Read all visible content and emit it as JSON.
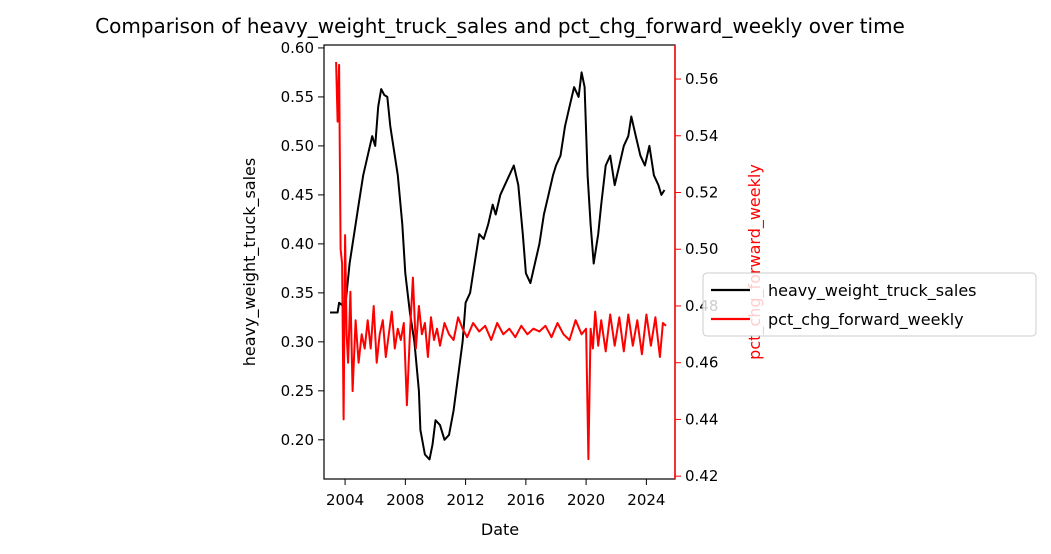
{
  "chart_data": {
    "type": "line",
    "title": "Comparison of heavy_weight_truck_sales and pct_chg_forward_weekly over time",
    "xlabel": "Date",
    "ylabel_left": "heavy_weight_truck_sales",
    "ylabel_right": "pct_chg_forward_weekly",
    "x_ticks": [
      "2004",
      "2008",
      "2012",
      "2016",
      "2020",
      "2024"
    ],
    "x_tick_values": [
      2004,
      2008,
      2012,
      2016,
      2020,
      2024
    ],
    "xlim": [
      2002.6,
      2025.9
    ],
    "ylim_left": [
      0.16,
      0.603
    ],
    "ylim_right": [
      0.419,
      0.572
    ],
    "y_ticks_left": [
      "0.20",
      "0.25",
      "0.30",
      "0.35",
      "0.40",
      "0.45",
      "0.50",
      "0.55",
      "0.60"
    ],
    "y_tick_values_left": [
      0.2,
      0.25,
      0.3,
      0.35,
      0.4,
      0.45,
      0.5,
      0.55,
      0.6
    ],
    "y_ticks_right": [
      "0.42",
      "0.44",
      "0.46",
      "0.48",
      "0.50",
      "0.52",
      "0.54",
      "0.56"
    ],
    "y_tick_values_right": [
      0.42,
      0.44,
      0.46,
      0.48,
      0.5,
      0.52,
      0.54,
      0.56
    ],
    "legend_placement": "center-right, outside plot",
    "grid": false,
    "series": [
      {
        "name": "heavy_weight_truck_sales",
        "axis": "left",
        "color": "#000000",
        "x": [
          2003.0,
          2003.5,
          2003.6,
          2004.0,
          2004.3,
          2004.6,
          2004.9,
          2005.2,
          2005.5,
          2005.8,
          2006.0,
          2006.2,
          2006.4,
          2006.6,
          2006.8,
          2007.0,
          2007.2,
          2007.5,
          2007.8,
          2008.0,
          2008.3,
          2008.6,
          2008.9,
          2009.0,
          2009.3,
          2009.6,
          2009.8,
          2010.0,
          2010.3,
          2010.6,
          2010.9,
          2011.2,
          2011.5,
          2011.8,
          2012.0,
          2012.3,
          2012.6,
          2012.9,
          2013.2,
          2013.5,
          2013.8,
          2014.0,
          2014.3,
          2014.6,
          2014.9,
          2015.2,
          2015.5,
          2015.8,
          2016.0,
          2016.3,
          2016.6,
          2016.9,
          2017.2,
          2017.5,
          2017.8,
          2018.0,
          2018.3,
          2018.6,
          2018.9,
          2019.2,
          2019.5,
          2019.7,
          2019.9,
          2020.1,
          2020.3,
          2020.5,
          2020.8,
          2021.0,
          2021.3,
          2021.6,
          2021.9,
          2022.2,
          2022.5,
          2022.8,
          2023.0,
          2023.3,
          2023.6,
          2023.9,
          2024.2,
          2024.5,
          2024.8,
          2025.0,
          2025.2
        ],
        "y": [
          0.33,
          0.33,
          0.34,
          0.335,
          0.38,
          0.41,
          0.44,
          0.47,
          0.49,
          0.51,
          0.5,
          0.54,
          0.558,
          0.552,
          0.55,
          0.52,
          0.5,
          0.47,
          0.42,
          0.37,
          0.33,
          0.3,
          0.25,
          0.21,
          0.185,
          0.18,
          0.195,
          0.22,
          0.215,
          0.2,
          0.205,
          0.23,
          0.265,
          0.3,
          0.34,
          0.35,
          0.38,
          0.41,
          0.405,
          0.42,
          0.44,
          0.43,
          0.45,
          0.46,
          0.47,
          0.48,
          0.46,
          0.41,
          0.37,
          0.36,
          0.38,
          0.4,
          0.43,
          0.45,
          0.47,
          0.48,
          0.49,
          0.52,
          0.54,
          0.56,
          0.55,
          0.575,
          0.56,
          0.47,
          0.42,
          0.38,
          0.41,
          0.44,
          0.48,
          0.49,
          0.46,
          0.48,
          0.5,
          0.51,
          0.53,
          0.51,
          0.49,
          0.48,
          0.5,
          0.47,
          0.46,
          0.45,
          0.455
        ]
      },
      {
        "name": "pct_chg_forward_weekly",
        "axis": "right",
        "color": "#ff0000",
        "x": [
          2003.4,
          2003.5,
          2003.6,
          2003.7,
          2003.8,
          2003.9,
          2004.0,
          2004.1,
          2004.2,
          2004.35,
          2004.5,
          2004.7,
          2004.9,
          2005.1,
          2005.3,
          2005.5,
          2005.7,
          2005.9,
          2006.1,
          2006.3,
          2006.5,
          2006.7,
          2006.9,
          2007.1,
          2007.3,
          2007.5,
          2007.7,
          2007.9,
          2008.1,
          2008.3,
          2008.5,
          2008.7,
          2008.9,
          2009.1,
          2009.3,
          2009.5,
          2009.7,
          2009.9,
          2010.1,
          2010.3,
          2010.6,
          2010.9,
          2011.2,
          2011.5,
          2011.8,
          2012.1,
          2012.5,
          2012.9,
          2013.3,
          2013.7,
          2014.1,
          2014.5,
          2014.9,
          2015.3,
          2015.7,
          2016.1,
          2016.5,
          2016.9,
          2017.3,
          2017.7,
          2018.1,
          2018.5,
          2018.9,
          2019.3,
          2019.7,
          2020.0,
          2020.15,
          2020.3,
          2020.45,
          2020.6,
          2020.8,
          2021.0,
          2021.3,
          2021.6,
          2021.9,
          2022.2,
          2022.5,
          2022.8,
          2023.1,
          2023.4,
          2023.7,
          2024.0,
          2024.3,
          2024.6,
          2024.9,
          2025.1,
          2025.3
        ],
        "y": [
          0.566,
          0.545,
          0.565,
          0.5,
          0.495,
          0.44,
          0.505,
          0.47,
          0.46,
          0.485,
          0.45,
          0.475,
          0.46,
          0.47,
          0.465,
          0.475,
          0.465,
          0.48,
          0.46,
          0.47,
          0.475,
          0.462,
          0.47,
          0.478,
          0.465,
          0.472,
          0.468,
          0.474,
          0.445,
          0.47,
          0.49,
          0.465,
          0.48,
          0.47,
          0.474,
          0.462,
          0.476,
          0.468,
          0.472,
          0.466,
          0.474,
          0.47,
          0.468,
          0.476,
          0.472,
          0.469,
          0.474,
          0.471,
          0.473,
          0.468,
          0.474,
          0.47,
          0.472,
          0.469,
          0.473,
          0.47,
          0.472,
          0.471,
          0.473,
          0.469,
          0.474,
          0.47,
          0.468,
          0.475,
          0.47,
          0.472,
          0.426,
          0.472,
          0.465,
          0.478,
          0.466,
          0.475,
          0.464,
          0.477,
          0.466,
          0.476,
          0.464,
          0.477,
          0.466,
          0.475,
          0.463,
          0.477,
          0.466,
          0.476,
          0.462,
          0.474,
          0.473
        ]
      }
    ]
  }
}
